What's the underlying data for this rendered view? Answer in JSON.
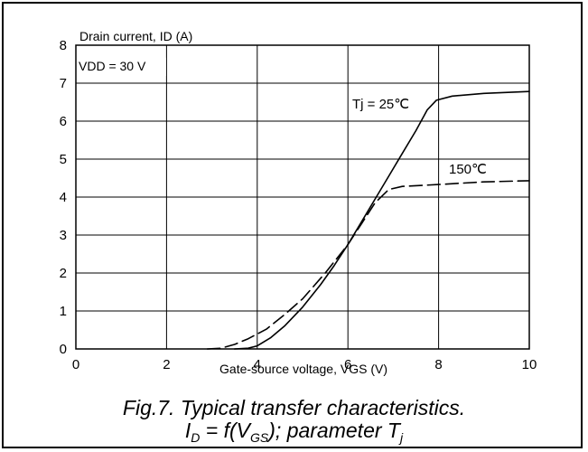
{
  "chart_data": {
    "type": "line",
    "ylabel": "Drain current, ID (A)",
    "xlabel": "Gate-source voltage, VGS (V)",
    "condition_note": "VDD = 30 V",
    "xlim": [
      0,
      10
    ],
    "ylim": [
      0,
      8
    ],
    "x_ticks": [
      0,
      2,
      4,
      6,
      8,
      10
    ],
    "y_ticks": [
      0,
      1,
      2,
      3,
      4,
      5,
      6,
      7,
      8
    ],
    "grid": true,
    "series": [
      {
        "name": "Tj = 25℃",
        "style": "solid",
        "points": [
          [
            3.5,
            0
          ],
          [
            3.8,
            0.02
          ],
          [
            4.0,
            0.08
          ],
          [
            4.3,
            0.3
          ],
          [
            4.6,
            0.6
          ],
          [
            5.0,
            1.1
          ],
          [
            5.4,
            1.7
          ],
          [
            5.7,
            2.2
          ],
          [
            6.0,
            2.75
          ],
          [
            6.3,
            3.35
          ],
          [
            6.6,
            3.95
          ],
          [
            6.9,
            4.55
          ],
          [
            7.2,
            5.15
          ],
          [
            7.5,
            5.75
          ],
          [
            7.75,
            6.3
          ],
          [
            7.95,
            6.55
          ],
          [
            8.3,
            6.66
          ],
          [
            9.0,
            6.73
          ],
          [
            10.0,
            6.78
          ]
        ]
      },
      {
        "name": "150℃",
        "style": "dashed",
        "points": [
          [
            2.9,
            0
          ],
          [
            3.2,
            0.02
          ],
          [
            3.5,
            0.12
          ],
          [
            3.8,
            0.27
          ],
          [
            4.2,
            0.52
          ],
          [
            4.6,
            0.9
          ],
          [
            5.0,
            1.32
          ],
          [
            5.5,
            2.0
          ],
          [
            6.0,
            2.75
          ],
          [
            6.3,
            3.3
          ],
          [
            6.6,
            3.85
          ],
          [
            6.9,
            4.2
          ],
          [
            7.2,
            4.28
          ],
          [
            8.0,
            4.33
          ],
          [
            9.0,
            4.4
          ],
          [
            10.0,
            4.43
          ]
        ]
      }
    ]
  },
  "caption": {
    "line1": "Fig.7.  Typical transfer characteristics.",
    "line2": {
      "id_main": "I",
      "id_sub": "D",
      "mid": " = f(V",
      "vgs_sub": "GS",
      "tail": "); parameter T",
      "tj_sub": "j"
    }
  }
}
